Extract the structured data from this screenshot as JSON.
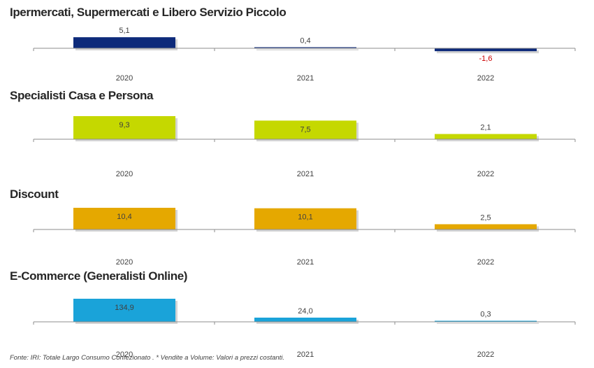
{
  "footnote": "Fonte: IRI: Totale Largo Consumo Confezionato . * Vendite a Volume: Valori a prezzi costanti.",
  "colors": {
    "axis": "#8c8c8c",
    "label": "#404040",
    "negative_label": "#cc0000",
    "shadow": "#b8b8b8"
  },
  "chart_data": [
    {
      "type": "bar",
      "title": "Ipermercati, Supermercati e Libero Servizio Piccolo",
      "categories": [
        "2020",
        "2021",
        "2022"
      ],
      "values": [
        5.1,
        0.4,
        -1.6
      ],
      "value_labels": [
        "5,1",
        "0,4",
        "-1,6"
      ],
      "color": "#0d2a7a",
      "grid": false
    },
    {
      "type": "bar",
      "title": "Specialisti Casa e Persona",
      "categories": [
        "2020",
        "2021",
        "2022"
      ],
      "values": [
        9.3,
        7.5,
        2.1
      ],
      "value_labels": [
        "9,3",
        "7,5",
        "2,1"
      ],
      "color": "#c5d800",
      "grid": false
    },
    {
      "type": "bar",
      "title": "Discount",
      "categories": [
        "2020",
        "2021",
        "2022"
      ],
      "values": [
        10.4,
        10.1,
        2.5
      ],
      "value_labels": [
        "10,4",
        "10,1",
        "2,5"
      ],
      "color": "#e5a800",
      "grid": false
    },
    {
      "type": "bar",
      "title": "E-Commerce (Generalisti Online)",
      "categories": [
        "2020",
        "2021",
        "2022"
      ],
      "values": [
        134.9,
        24.0,
        0.3
      ],
      "value_labels": [
        "134,9",
        "24,0",
        "0,3"
      ],
      "color": "#1aa3d9",
      "grid": false
    }
  ]
}
